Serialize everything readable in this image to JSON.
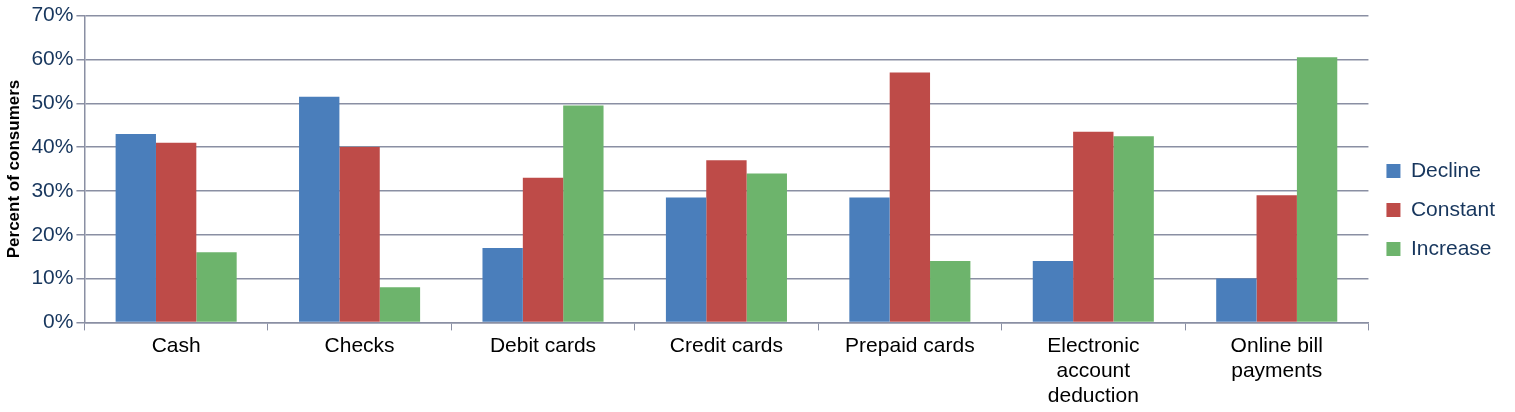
{
  "chart_data": {
    "type": "bar",
    "ylabel": "Percent of consumers",
    "categories": [
      "Cash",
      "Checks",
      "Debit cards",
      "Credit cards",
      "Prepaid cards",
      "Electronic account deduction",
      "Online bill payments"
    ],
    "series": [
      {
        "name": "Decline",
        "color": "#4a7ebb",
        "values": [
          43,
          51.5,
          17,
          28.5,
          28.5,
          14,
          10
        ]
      },
      {
        "name": "Constant",
        "color": "#be4b48",
        "values": [
          41,
          40,
          33,
          37,
          57,
          43.5,
          29
        ]
      },
      {
        "name": "Increase",
        "color": "#6db46c",
        "values": [
          16,
          8,
          49.5,
          34,
          14,
          42.5,
          60.5
        ]
      }
    ],
    "ylim": [
      0,
      70
    ],
    "yticks": [
      {
        "value": 0,
        "label": "0%"
      },
      {
        "value": 10,
        "label": "10%"
      },
      {
        "value": 20,
        "label": "20%"
      },
      {
        "value": 30,
        "label": "30%"
      },
      {
        "value": 40,
        "label": "40%"
      },
      {
        "value": 50,
        "label": "50%"
      },
      {
        "value": 60,
        "label": "60%"
      },
      {
        "value": 70,
        "label": "70%"
      }
    ],
    "grid": "y",
    "legend": "right"
  }
}
